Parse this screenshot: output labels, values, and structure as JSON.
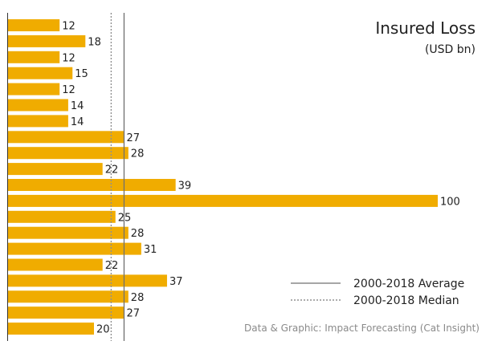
{
  "chart_data": {
    "type": "bar",
    "orientation": "horizontal",
    "title": "Insured Loss",
    "subtitle": "(USD bn)",
    "values": [
      12,
      18,
      12,
      15,
      12,
      14,
      14,
      27,
      28,
      22,
      39,
      100,
      25,
      28,
      31,
      22,
      37,
      28,
      27,
      20
    ],
    "value_labels": [
      "12",
      "18",
      "12",
      "15",
      "12",
      "14",
      "14",
      "27",
      "28",
      "22",
      "39",
      "100",
      "25",
      "28",
      "31",
      "22",
      "37",
      "28",
      "27",
      "20"
    ],
    "xlim": [
      0,
      100
    ],
    "average": 27,
    "median": 24,
    "grid": false,
    "bar_color": "#f0ac00",
    "legend": {
      "position": "bottom-right",
      "average_label": "2000-2018 Average",
      "median_label": "2000-2018 Median"
    },
    "source": "Data & Graphic: Impact Forecasting (Cat Insight)"
  }
}
